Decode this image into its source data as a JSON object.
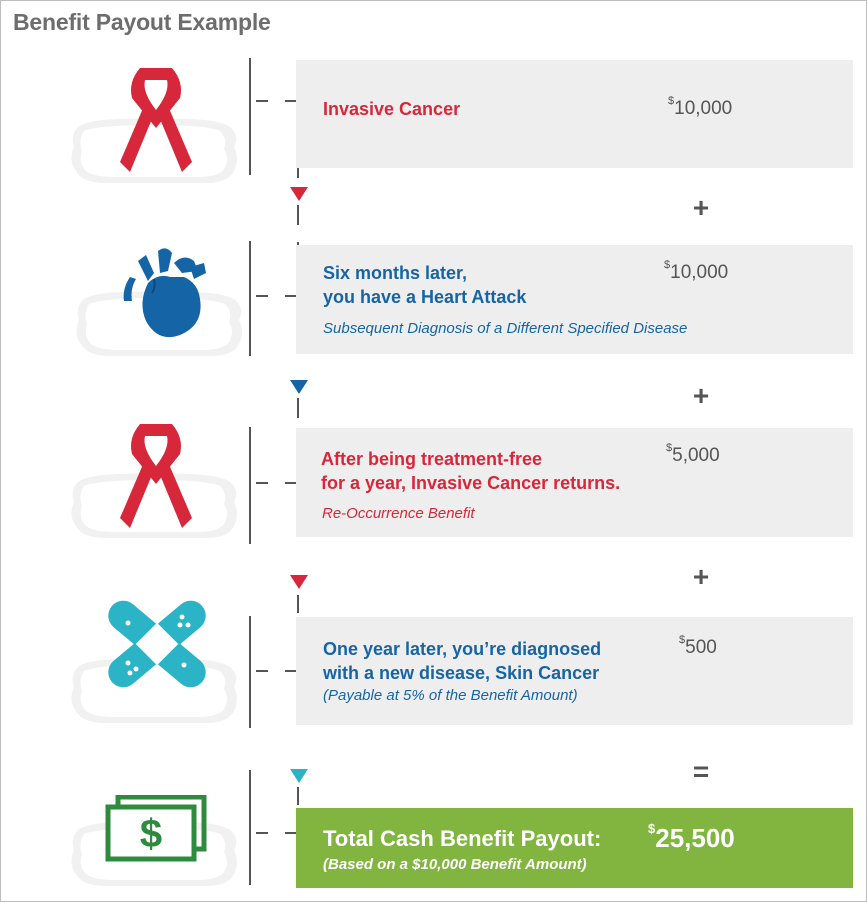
{
  "title": "Benefit Payout Example",
  "colors": {
    "red": "#d6283a",
    "blue": "#1565a6",
    "teal": "#2bb3c6",
    "green": "#82b53f",
    "card": "#efeeee"
  },
  "steps": [
    {
      "icon": "cancer-ribbon-icon",
      "label": "Invasive Cancer",
      "sub": "",
      "amount_symbol": "$",
      "amount": "10,000",
      "color": "red",
      "operator": "+"
    },
    {
      "icon": "heart-icon",
      "label_line1": "Six months later,",
      "label_line2": "you have a Heart Attack",
      "sub": "Subsequent Diagnosis of a Different Specified Disease",
      "amount_symbol": "$",
      "amount": "10,000",
      "color": "blue",
      "operator": "+"
    },
    {
      "icon": "cancer-ribbon-icon",
      "label_line1": "After being treatment-free",
      "label_line2": "for a year, Invasive Cancer returns.",
      "sub": "Re-Occurrence Benefit",
      "amount_symbol": "$",
      "amount": "5,000",
      "color": "red",
      "operator": "+"
    },
    {
      "icon": "bandage-icon",
      "label_line1": "One year later, you’re diagnosed",
      "label_line2": "with a new disease, Skin Cancer",
      "sub": "(Payable at 5% of the Benefit Amount)",
      "amount_symbol": "$",
      "amount": "500",
      "color": "blue",
      "operator": "="
    }
  ],
  "total": {
    "icon": "money-icon",
    "label": "Total Cash Benefit Payout:",
    "sub": "(Based on a $10,000 Benefit Amount)",
    "amount_symbol": "$",
    "amount": "25,500"
  }
}
